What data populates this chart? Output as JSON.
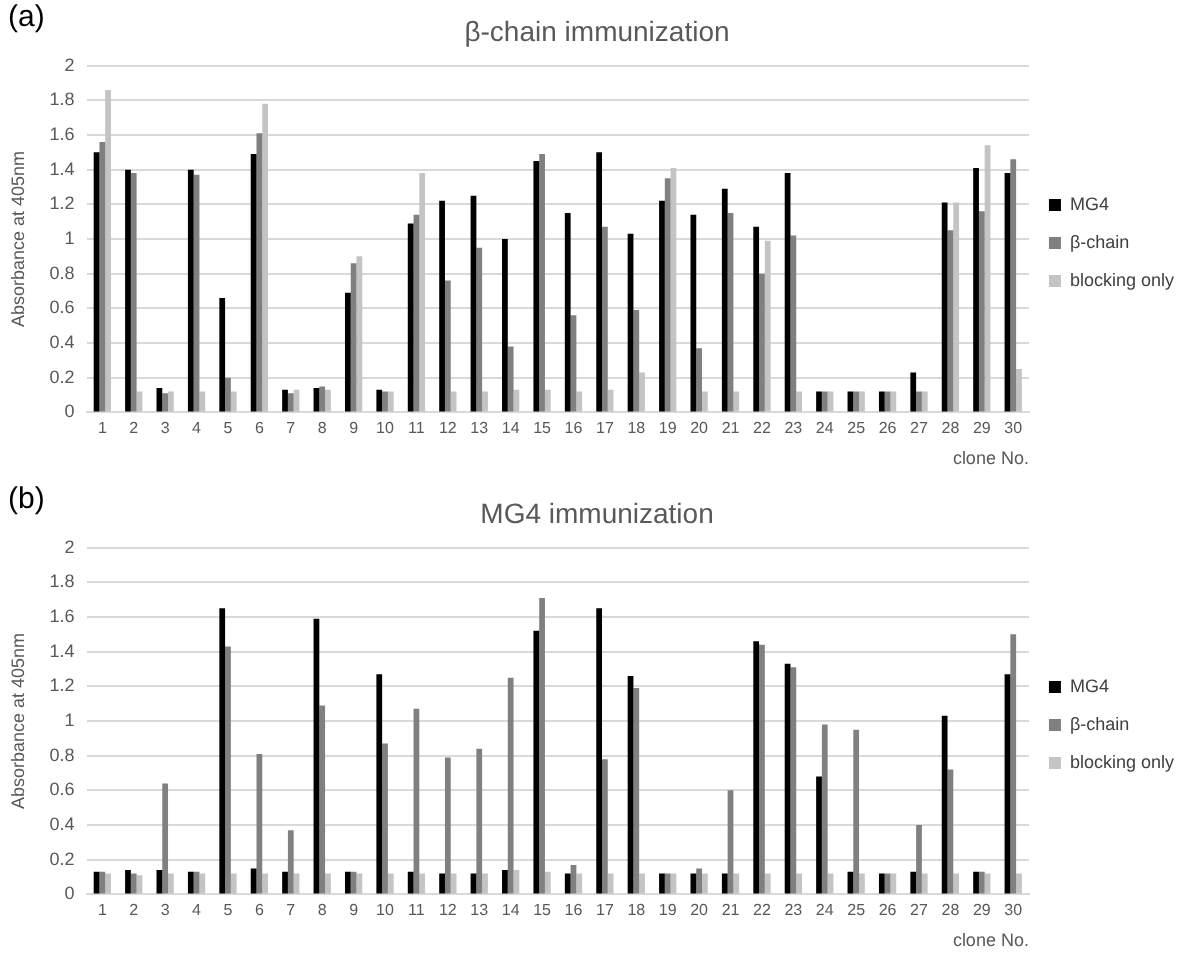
{
  "chart_data": [
    {
      "type": "bar",
      "title": "β-chain immunization",
      "annotations": [
        "(a)"
      ],
      "xlabel": "clone No.",
      "ylabel": "Absorbance at 405nm",
      "categories": [
        "1",
        "2",
        "3",
        "4",
        "5",
        "6",
        "7",
        "8",
        "9",
        "10",
        "11",
        "12",
        "13",
        "14",
        "15",
        "16",
        "17",
        "18",
        "19",
        "20",
        "21",
        "22",
        "23",
        "24",
        "25",
        "26",
        "27",
        "28",
        "29",
        "30"
      ],
      "series": [
        {
          "name": "MG4",
          "color": "#000000",
          "values": [
            1.5,
            1.4,
            0.14,
            1.4,
            0.66,
            1.49,
            0.13,
            0.14,
            0.69,
            0.13,
            1.09,
            1.22,
            1.25,
            1.0,
            1.45,
            1.15,
            1.5,
            1.03,
            1.22,
            1.14,
            1.29,
            1.07,
            1.38,
            0.12,
            0.12,
            0.12,
            0.23,
            1.21,
            1.41,
            1.38
          ]
        },
        {
          "name": "β-chain",
          "color": "#808080",
          "values": [
            1.56,
            1.38,
            0.11,
            1.37,
            0.2,
            1.61,
            0.11,
            0.15,
            0.86,
            0.12,
            1.14,
            0.76,
            0.95,
            0.38,
            1.49,
            0.56,
            1.07,
            0.59,
            1.35,
            0.37,
            1.15,
            0.8,
            1.02,
            0.12,
            0.12,
            0.12,
            0.12,
            1.05,
            1.16,
            1.46
          ]
        },
        {
          "name": "blocking only",
          "color": "#c4c4c4",
          "values": [
            1.86,
            0.12,
            0.12,
            0.12,
            0.12,
            1.78,
            0.13,
            0.13,
            0.9,
            0.12,
            1.38,
            0.12,
            0.12,
            0.13,
            0.13,
            0.12,
            0.13,
            0.23,
            1.41,
            0.12,
            0.12,
            0.99,
            0.12,
            0.12,
            0.12,
            0.12,
            0.12,
            1.21,
            1.54,
            0.25
          ]
        }
      ],
      "ylim": [
        0,
        2
      ],
      "yticks": [
        0,
        0.2,
        0.4,
        0.6,
        0.8,
        1,
        1.2,
        1.4,
        1.6,
        1.8,
        2
      ],
      "grid": "y",
      "legend": "right"
    },
    {
      "type": "bar",
      "title": "MG4 immunization",
      "annotations": [
        "(b)"
      ],
      "xlabel": "clone No.",
      "ylabel": "Absorbance at 405nm",
      "categories": [
        "1",
        "2",
        "3",
        "4",
        "5",
        "6",
        "7",
        "8",
        "9",
        "10",
        "11",
        "12",
        "13",
        "14",
        "15",
        "16",
        "17",
        "18",
        "19",
        "20",
        "21",
        "22",
        "23",
        "24",
        "25",
        "26",
        "27",
        "28",
        "29",
        "30"
      ],
      "series": [
        {
          "name": "MG4",
          "color": "#000000",
          "values": [
            0.13,
            0.14,
            0.14,
            0.13,
            1.65,
            0.15,
            0.13,
            1.59,
            0.13,
            1.27,
            0.13,
            0.12,
            0.12,
            0.14,
            1.52,
            0.12,
            1.65,
            1.26,
            0.12,
            0.12,
            0.12,
            1.46,
            1.33,
            0.68,
            0.13,
            0.12,
            0.13,
            1.03,
            0.13,
            1.27
          ]
        },
        {
          "name": "β-chain",
          "color": "#808080",
          "values": [
            0.13,
            0.12,
            0.64,
            0.13,
            1.43,
            0.81,
            0.37,
            1.09,
            0.13,
            0.87,
            1.07,
            0.79,
            0.84,
            1.25,
            1.71,
            0.17,
            0.78,
            1.19,
            0.12,
            0.15,
            0.6,
            1.44,
            1.31,
            0.98,
            0.95,
            0.12,
            0.4,
            0.72,
            0.13,
            1.5
          ]
        },
        {
          "name": "blocking only",
          "color": "#c4c4c4",
          "values": [
            0.12,
            0.11,
            0.12,
            0.12,
            0.12,
            0.12,
            0.12,
            0.12,
            0.12,
            0.12,
            0.12,
            0.12,
            0.12,
            0.14,
            0.13,
            0.12,
            0.12,
            0.12,
            0.12,
            0.12,
            0.12,
            0.12,
            0.12,
            0.12,
            0.12,
            0.12,
            0.12,
            0.12,
            0.12,
            0.12
          ]
        }
      ],
      "ylim": [
        0,
        2
      ],
      "yticks": [
        0,
        0.2,
        0.4,
        0.6,
        0.8,
        1,
        1.2,
        1.4,
        1.6,
        1.8,
        2
      ],
      "grid": "y",
      "legend": "right"
    }
  ]
}
